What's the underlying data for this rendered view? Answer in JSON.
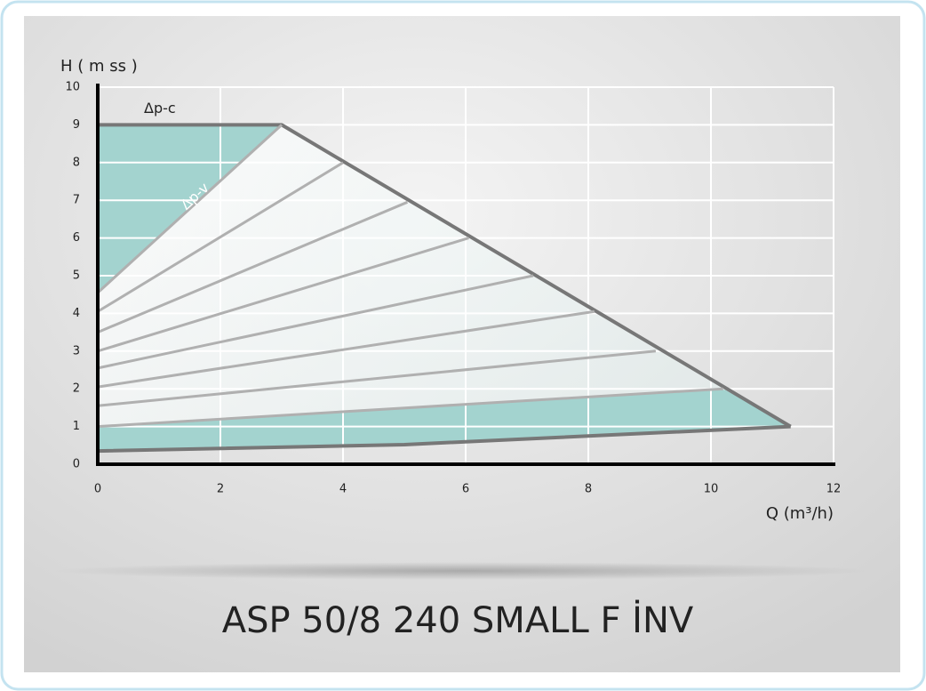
{
  "chart_data": {
    "type": "line",
    "title": "ASP 50/8 240 SMALL F İNV",
    "y_label": "H ( m ss )",
    "x_label": "Q (m³/h)",
    "xlim": [
      0,
      12
    ],
    "ylim": [
      0,
      10
    ],
    "xticks": [
      0,
      2,
      4,
      6,
      8,
      10,
      12
    ],
    "yticks": [
      0,
      1,
      2,
      3,
      4,
      5,
      6,
      7,
      8,
      9,
      10
    ],
    "grid": true,
    "fill_color": "#a3d3cf",
    "series": [
      {
        "name": "Δp-c",
        "color": "#777777",
        "x": [
          0,
          3,
          11.3
        ],
        "values": [
          9,
          9,
          1.0
        ]
      },
      {
        "color": "#777777",
        "x": [
          0,
          5,
          11.3
        ],
        "values": [
          0.35,
          0.52,
          1.0
        ]
      },
      {
        "name": "Δp-v",
        "color": "#b0b0b0",
        "x": [
          0,
          3
        ],
        "values": [
          4.55,
          9
        ]
      },
      {
        "color": "#b0b0b0",
        "x": [
          0,
          4
        ],
        "values": [
          4.05,
          8
        ]
      },
      {
        "color": "#b0b0b0",
        "x": [
          0,
          5.05
        ],
        "values": [
          3.5,
          6.95
        ]
      },
      {
        "color": "#b0b0b0",
        "x": [
          0,
          6.05
        ],
        "values": [
          3.0,
          6.0
        ]
      },
      {
        "color": "#b0b0b0",
        "x": [
          0,
          7.1
        ],
        "values": [
          2.55,
          5.0
        ]
      },
      {
        "color": "#b0b0b0",
        "x": [
          0,
          8.1
        ],
        "values": [
          2.05,
          4.05
        ]
      },
      {
        "color": "#b0b0b0",
        "x": [
          0,
          9.1
        ],
        "values": [
          1.55,
          3.0
        ]
      },
      {
        "color": "#b0b0b0",
        "x": [
          0,
          10.2
        ],
        "values": [
          1.0,
          2.0
        ]
      }
    ]
  }
}
